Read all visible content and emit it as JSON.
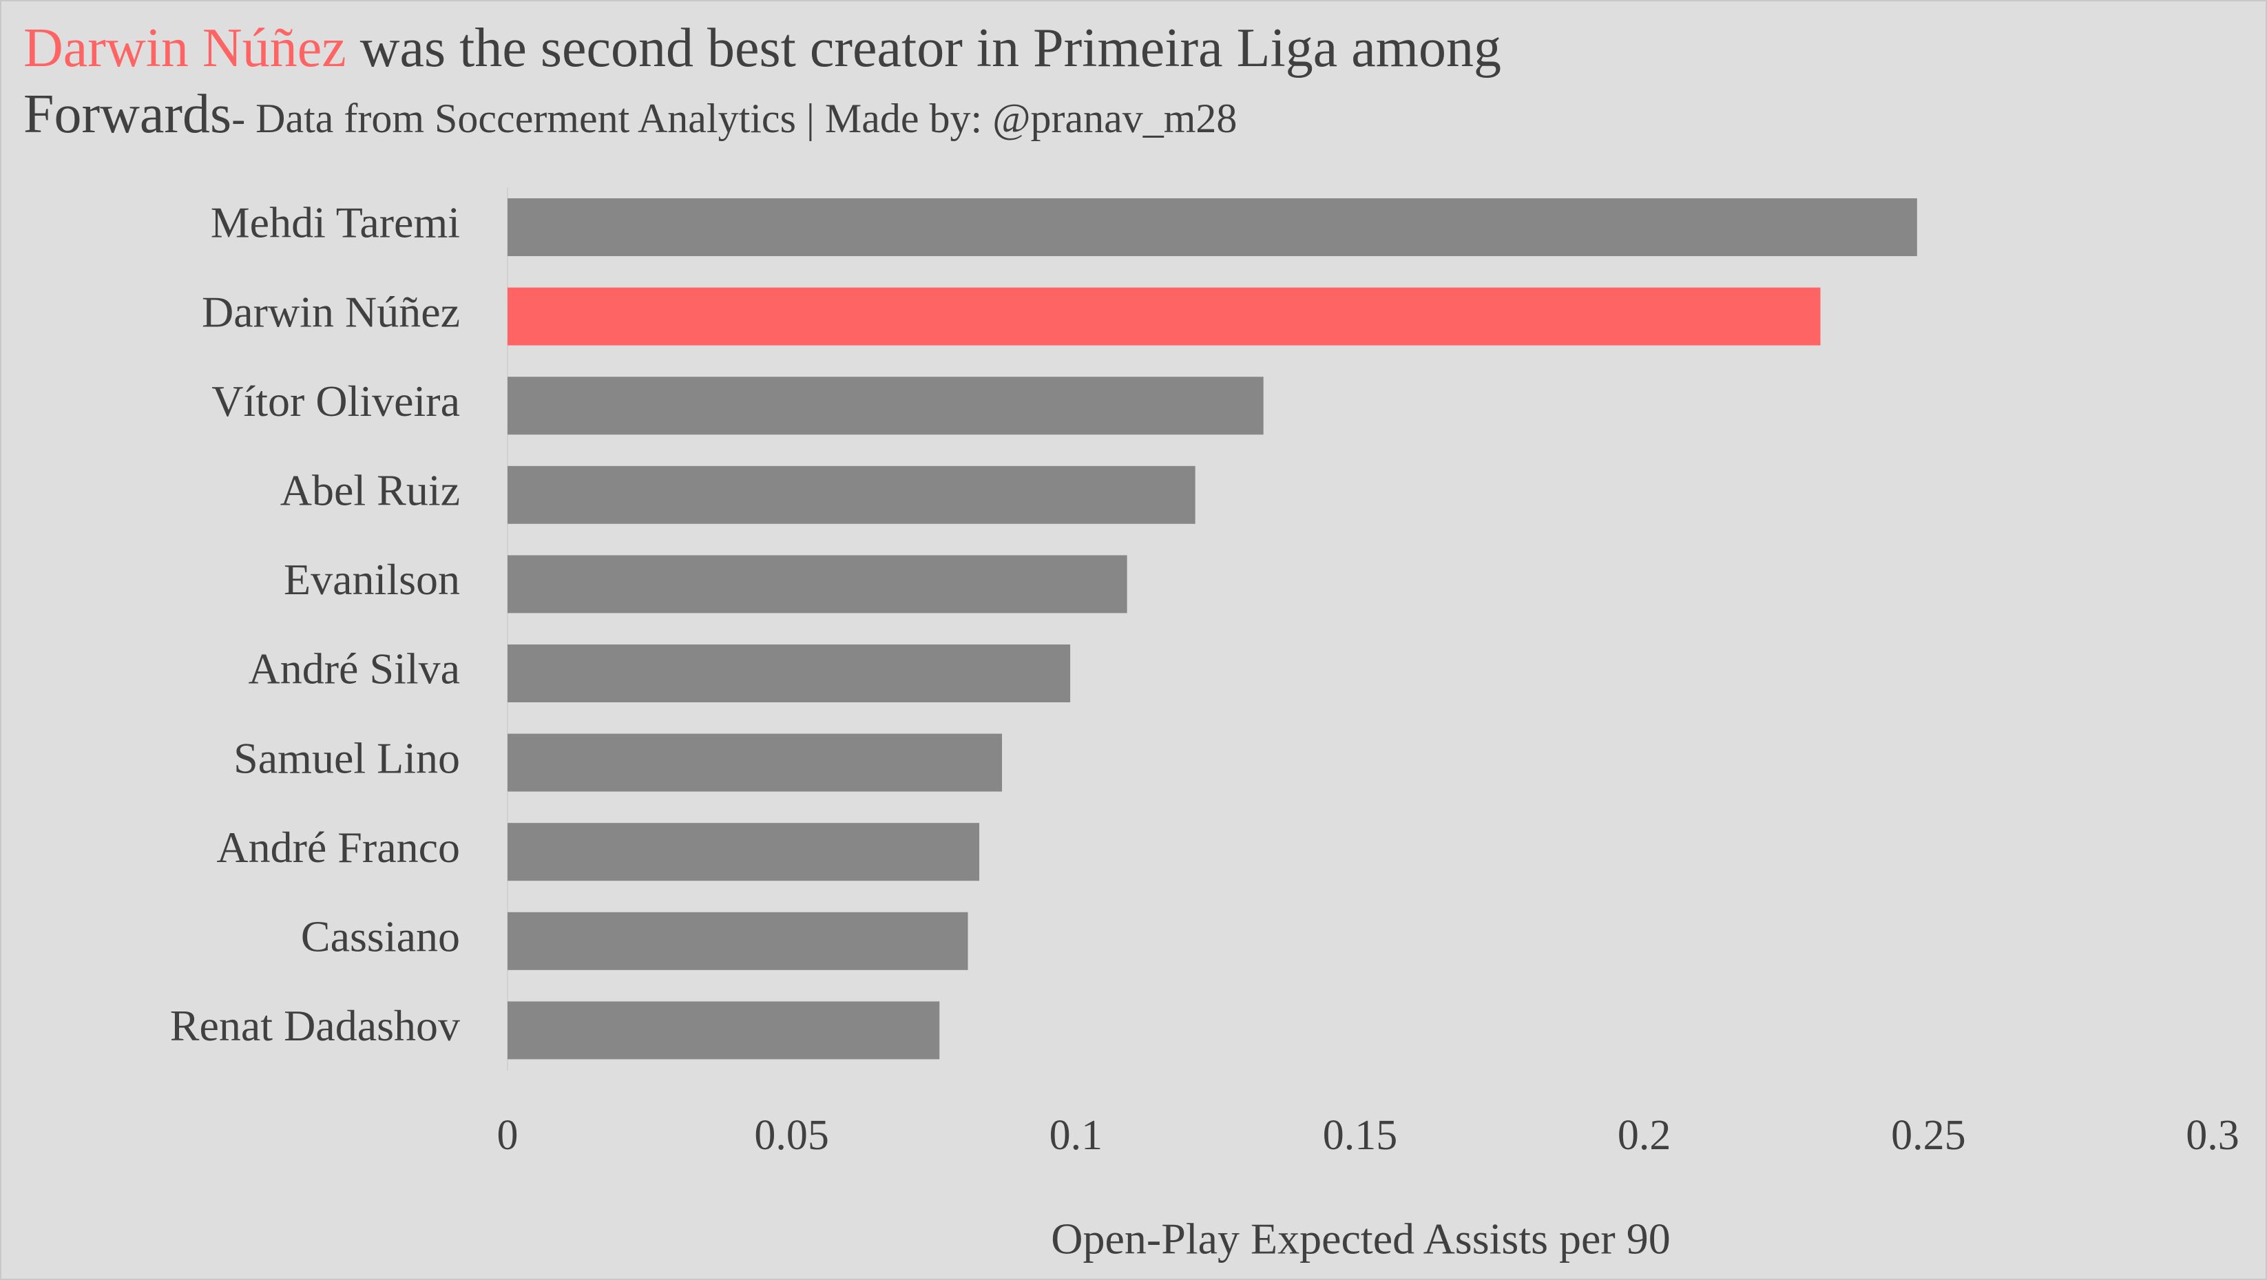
{
  "chart_data": {
    "type": "barh",
    "title": {
      "highlight": "Darwin Núñez",
      "line1": "was the second best creator in Primeira Liga among",
      "line2": "Forwards"
    },
    "subtitle": "- Data from Soccerment Analytics  |  Made by: @pranav_m28",
    "x_label": "Open-Play Expected Assists per 90",
    "categories": [
      "Mehdi Taremi",
      "Darwin Núñez",
      "Vítor Oliveira",
      "Abel Ruiz",
      "Evanilson",
      "André Silva",
      "Samuel Lino",
      "André Franco",
      "Cassiano",
      "Renat Dadashov"
    ],
    "values": [
      0.248,
      0.231,
      0.133,
      0.121,
      0.109,
      0.099,
      0.087,
      0.083,
      0.081,
      0.076
    ],
    "colors": [
      "#878787",
      "#fe6464",
      "#878787",
      "#878787",
      "#878787",
      "#878787",
      "#878787",
      "#878787",
      "#878787",
      "#878787"
    ],
    "highlight_color": "#fe6464",
    "xlim": [
      0,
      0.3
    ],
    "xticks": [
      0,
      0.05,
      0.1,
      0.15,
      0.2,
      0.25,
      0.3
    ],
    "grid": false
  }
}
